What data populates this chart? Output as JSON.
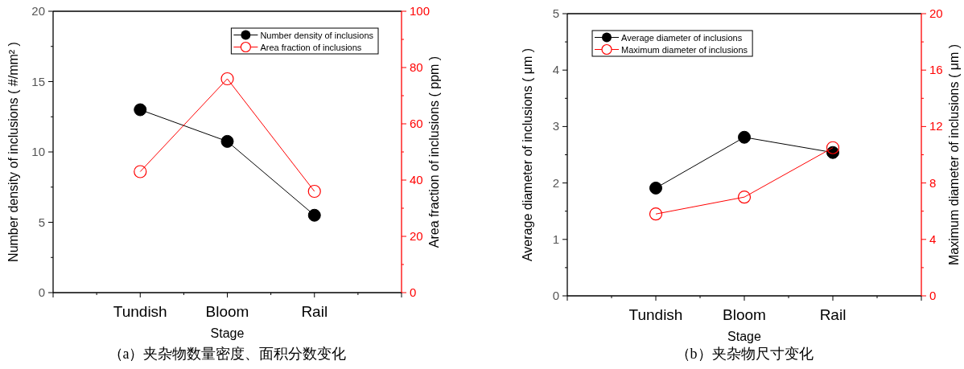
{
  "chart_data": [
    {
      "type": "line",
      "categories": [
        "Tundish",
        "Bloom",
        "Rail"
      ],
      "xlabel": "Stage",
      "ylabel": "Number density of inclusions ( #/mm² )",
      "y2label": "Area fraction of inclusions ( ppm )",
      "ylim": [
        0,
        20
      ],
      "yticks": [
        0,
        5,
        10,
        15,
        20
      ],
      "y2lim": [
        0,
        100
      ],
      "y2ticks": [
        0,
        20,
        40,
        60,
        80,
        100
      ],
      "marker": "circle",
      "legend": "top right",
      "series": [
        {
          "name": "Number density of inclusions",
          "color": "#000000",
          "values": [
            13.0,
            10.75,
            5.5
          ]
        },
        {
          "name": "Area fraction of inclusions",
          "color": "#ff0000",
          "axis": "y2",
          "values": [
            43,
            76,
            36
          ]
        }
      ],
      "annotations": [
        "（a）夹杂物数量密度、面积分数变化"
      ]
    },
    {
      "type": "line",
      "categories": [
        "Tundish",
        "Bloom",
        "Rail"
      ],
      "xlabel": "Stage",
      "ylabel": "Average diameter of inclusions ( μm )",
      "y2label": "Maximum diameter of inclusions ( μm )",
      "ylim": [
        0,
        5
      ],
      "yticks": [
        0,
        1,
        2,
        3,
        4,
        5
      ],
      "y2lim": [
        0,
        20
      ],
      "y2ticks": [
        0,
        4,
        8,
        12,
        16,
        20
      ],
      "marker": "circle",
      "legend": "top left",
      "series": [
        {
          "name": "Average diameter of inclusions",
          "color": "#000000",
          "values": [
            1.91,
            2.81,
            2.54
          ]
        },
        {
          "name": "Maximum diameter of inclusions",
          "color": "#ff0000",
          "axis": "y2",
          "values": [
            5.8,
            7.0,
            10.5
          ]
        }
      ],
      "annotations": [
        "（b）夹杂物尺寸变化"
      ]
    }
  ]
}
